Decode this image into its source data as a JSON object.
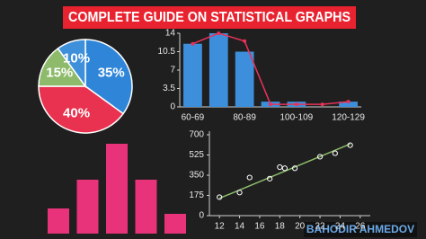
{
  "title": "COMPLETE GUIDE ON STATISTICAL GRAPHS",
  "author": "BAHODIR AHMEDOV",
  "chart_data": [
    {
      "type": "pie",
      "values": [
        35,
        40,
        15,
        10
      ],
      "value_labels": [
        "35%",
        "40%",
        "15%",
        "10%"
      ],
      "colors": [
        "#2f86d8",
        "#e8324f",
        "#8dbb6b",
        "#3f90da"
      ]
    },
    {
      "type": "bar",
      "categories": [
        "60-69",
        null,
        "80-89",
        null,
        "100-109",
        null,
        "120-129"
      ],
      "series": [
        {
          "type": "bar",
          "color": "#3d8fdb",
          "values": [
            12,
            14,
            10.5,
            1,
            1,
            0,
            1
          ]
        },
        {
          "type": "line",
          "color": "#e8325a",
          "values": [
            12,
            14,
            12.5,
            0.5,
            0.5,
            0.5,
            1
          ]
        }
      ],
      "ylim": [
        0,
        14
      ],
      "yticks": [
        0,
        3.5,
        7,
        10.5,
        14
      ]
    },
    {
      "type": "bar",
      "values": [
        2.8,
        6,
        10,
        6,
        2.2
      ],
      "color": "#e8327a"
    },
    {
      "type": "scatter",
      "x": [
        12,
        14,
        15,
        17,
        18,
        18.5,
        19.5,
        22,
        23.5,
        25
      ],
      "values": [
        160,
        200,
        330,
        320,
        420,
        410,
        410,
        510,
        540,
        610
      ],
      "color": "#ffffff",
      "xlim": [
        11,
        27
      ],
      "xticks": [
        12,
        14,
        16,
        18,
        20,
        22,
        24,
        26
      ],
      "ylim": [
        0,
        700
      ],
      "yticks": [
        0,
        175,
        350,
        525,
        700
      ],
      "trendline": {
        "x": [
          12,
          25
        ],
        "values": [
          150,
          620
        ],
        "color": "#8dbb6b"
      }
    }
  ]
}
